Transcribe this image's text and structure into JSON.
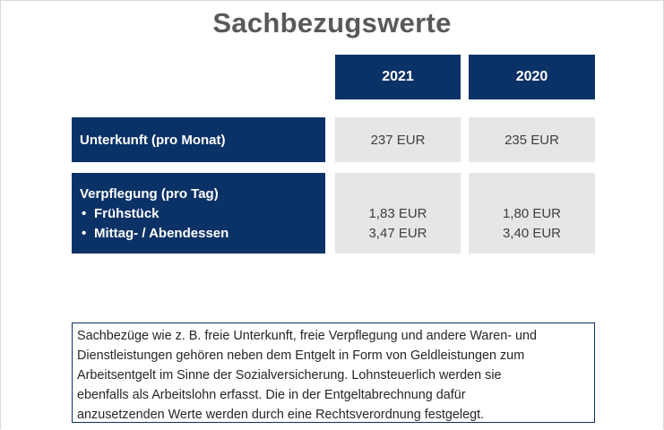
{
  "title": "Sachbezugswerte",
  "table": {
    "columns": [
      "2021",
      "2020"
    ],
    "rows": [
      {
        "label": "Unterkunft (pro Monat)",
        "values": [
          "237 EUR",
          "235 EUR"
        ]
      },
      {
        "label": "Verpflegung (pro Tag)",
        "items": [
          {
            "label": "Frühstück",
            "values": [
              "1,83 EUR",
              "1,80 EUR"
            ]
          },
          {
            "label": "Mittag- / Abendessen",
            "values": [
              "3,47 EUR",
              "3,40 EUR"
            ]
          }
        ]
      }
    ]
  },
  "note": {
    "lines": [
      "Sachbezüge wie z. B. freie Unterkunft, freie Verpflegung und andere Waren- und",
      "Dienstleistungen gehören neben dem Entgelt in Form von Geldleistungen zum",
      "Arbeitsentgelt im Sinne der Sozialversicherung. Lohnsteuerlich werden sie",
      "ebenfalls als Arbeitslohn erfasst. Die in der Entgeltabrechnung dafür",
      "anzusetzenden Werte werden durch eine Rechtsverordnung festgelegt."
    ]
  },
  "colors": {
    "navy": "#0b3266",
    "grey": "#e6e6e6",
    "title": "#595959"
  }
}
